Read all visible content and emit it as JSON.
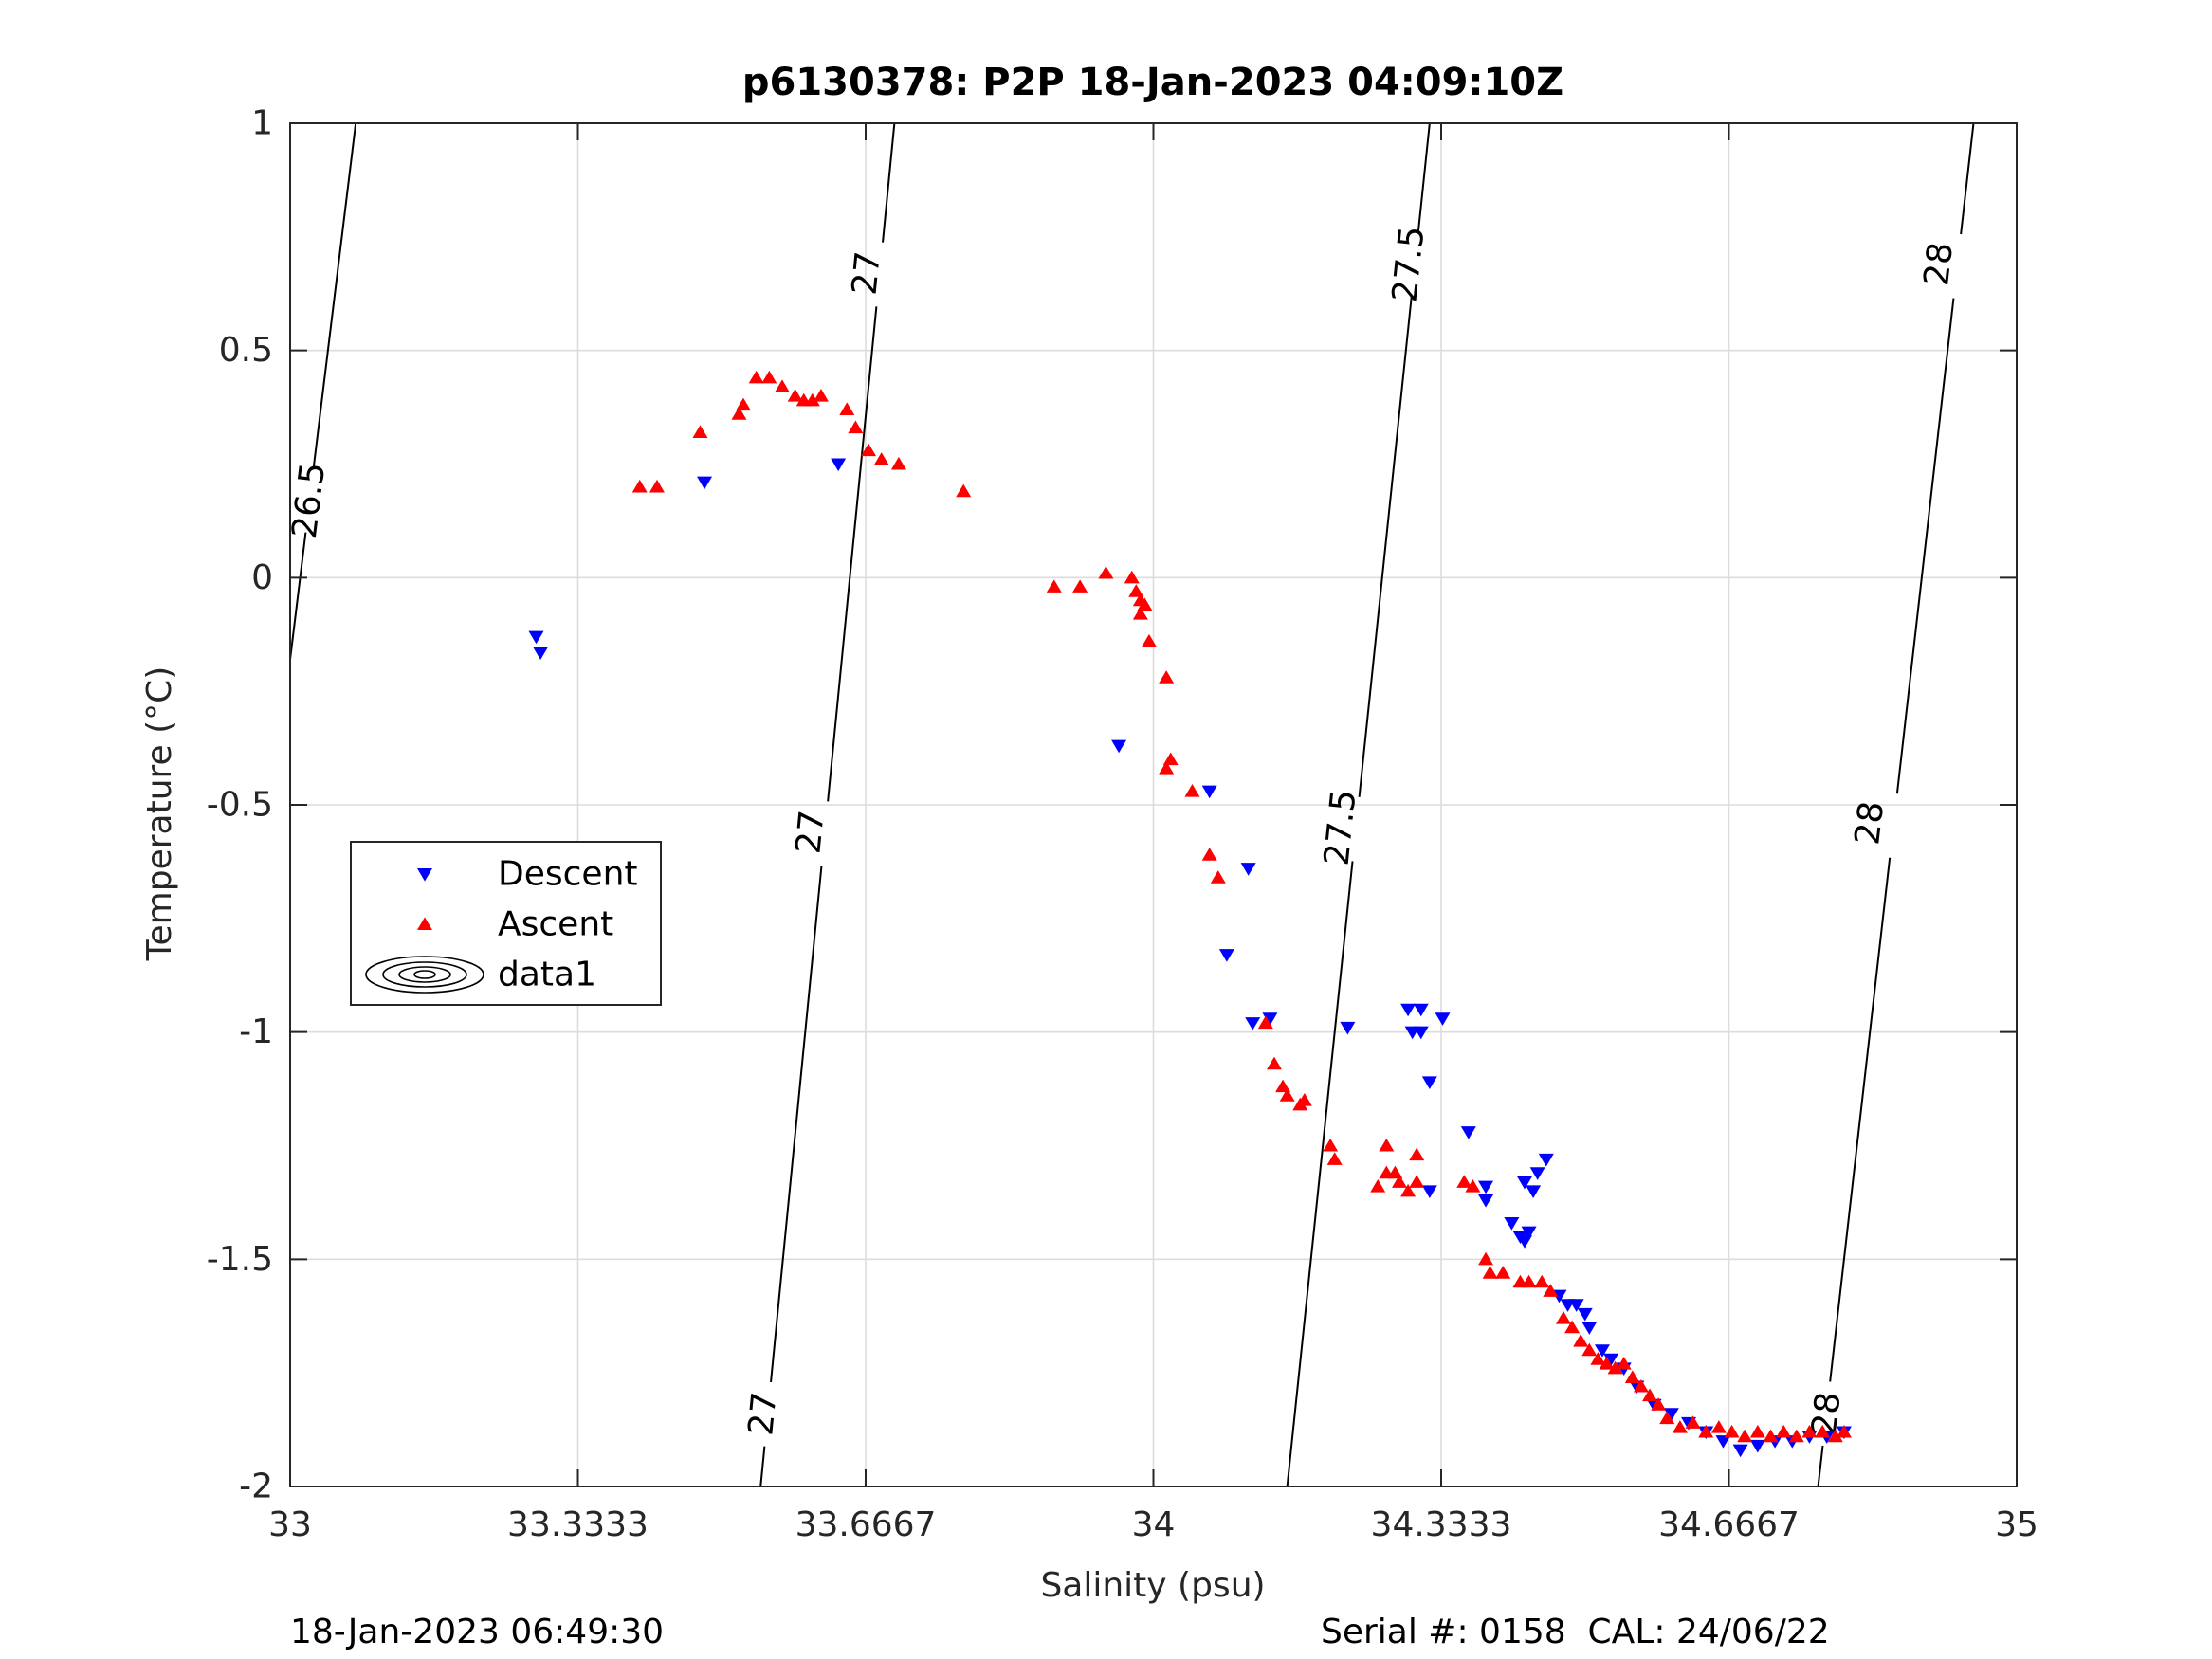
{
  "chart_data": {
    "type": "scatter",
    "title": "p6130378: P2P 18-Jan-2023 04:09:10Z",
    "xlabel": "Salinity (psu)",
    "ylabel": "Temperature (°C)",
    "xlim": [
      33,
      35
    ],
    "ylim": [
      -2,
      1
    ],
    "x_ticks": [
      "33",
      "33.3333",
      "33.6667",
      "34",
      "34.3333",
      "34.6667",
      "35"
    ],
    "x_tick_values": [
      33,
      33.33333,
      33.66667,
      34,
      34.33333,
      34.66667,
      35
    ],
    "y_ticks": [
      "1",
      "0.5",
      "0",
      "-0.5",
      "-1",
      "-1.5",
      "-2"
    ],
    "y_tick_values": [
      1,
      0.5,
      0,
      -0.5,
      -1,
      -1.5,
      -2
    ],
    "grid": true,
    "legend_placement": "left-middle",
    "contours": [
      {
        "label": "26.5",
        "points": [
          [
            33.0,
            -0.18
          ],
          [
            33.076,
            1.0
          ]
        ],
        "label_positions": [
          [
            33.022,
            0.17
          ]
        ]
      },
      {
        "label": "27",
        "points": [
          [
            33.545,
            -2.0
          ],
          [
            33.7,
            1.0
          ]
        ],
        "label_positions": [
          [
            33.548,
            -1.84
          ],
          [
            33.603,
            -0.56
          ],
          [
            33.668,
            0.67
          ]
        ]
      },
      {
        "label": "27.5",
        "points": [
          [
            34.155,
            -2.0
          ],
          [
            34.32,
            1.0
          ]
        ],
        "label_positions": [
          [
            34.217,
            -0.55
          ],
          [
            34.296,
            0.69
          ]
        ]
      },
      {
        "label": "28",
        "points": [
          [
            34.77,
            -2.0
          ],
          [
            34.95,
            1.0
          ]
        ],
        "label_positions": [
          [
            34.78,
            -1.84
          ],
          [
            34.83,
            -0.54
          ],
          [
            34.91,
            0.69
          ]
        ]
      }
    ],
    "series": [
      {
        "name": "Descent",
        "color": "#0000ff",
        "marker": "triangle-down",
        "points": [
          [
            33.285,
            -0.13
          ],
          [
            33.29,
            -0.165
          ],
          [
            33.48,
            0.21
          ],
          [
            33.635,
            0.25
          ],
          [
            33.96,
            -0.37
          ],
          [
            34.065,
            -0.47
          ],
          [
            34.085,
            -0.83
          ],
          [
            34.11,
            -0.64
          ],
          [
            34.115,
            -0.98
          ],
          [
            34.135,
            -0.97
          ],
          [
            34.225,
            -0.99
          ],
          [
            34.295,
            -0.95
          ],
          [
            34.31,
            -0.95
          ],
          [
            34.3,
            -1.0
          ],
          [
            34.31,
            -1.0
          ],
          [
            34.32,
            -1.11
          ],
          [
            34.335,
            -0.97
          ],
          [
            34.32,
            -1.35
          ],
          [
            34.365,
            -1.22
          ],
          [
            34.385,
            -1.34
          ],
          [
            34.385,
            -1.37
          ],
          [
            34.415,
            -1.42
          ],
          [
            34.425,
            -1.45
          ],
          [
            34.43,
            -1.46
          ],
          [
            34.435,
            -1.44
          ],
          [
            34.43,
            -1.33
          ],
          [
            34.44,
            -1.35
          ],
          [
            34.445,
            -1.31
          ],
          [
            34.455,
            -1.28
          ],
          [
            34.47,
            -1.58
          ],
          [
            34.48,
            -1.6
          ],
          [
            34.49,
            -1.6
          ],
          [
            34.5,
            -1.62
          ],
          [
            34.505,
            -1.65
          ],
          [
            34.52,
            -1.7
          ],
          [
            34.53,
            -1.72
          ],
          [
            34.545,
            -1.74
          ],
          [
            34.56,
            -1.78
          ],
          [
            34.58,
            -1.82
          ],
          [
            34.6,
            -1.84
          ],
          [
            34.62,
            -1.86
          ],
          [
            34.64,
            -1.88
          ],
          [
            34.66,
            -1.9
          ],
          [
            34.68,
            -1.92
          ],
          [
            34.7,
            -1.91
          ],
          [
            34.72,
            -1.9
          ],
          [
            34.74,
            -1.9
          ],
          [
            34.76,
            -1.89
          ],
          [
            34.78,
            -1.89
          ],
          [
            34.8,
            -1.88
          ]
        ]
      },
      {
        "name": "Ascent",
        "color": "#ff0000",
        "marker": "triangle-up",
        "points": [
          [
            33.405,
            0.2
          ],
          [
            33.425,
            0.2
          ],
          [
            33.475,
            0.32
          ],
          [
            33.52,
            0.36
          ],
          [
            33.525,
            0.38
          ],
          [
            33.54,
            0.44
          ],
          [
            33.555,
            0.44
          ],
          [
            33.57,
            0.42
          ],
          [
            33.585,
            0.4
          ],
          [
            33.595,
            0.39
          ],
          [
            33.605,
            0.39
          ],
          [
            33.615,
            0.4
          ],
          [
            33.645,
            0.37
          ],
          [
            33.655,
            0.33
          ],
          [
            33.67,
            0.28
          ],
          [
            33.685,
            0.26
          ],
          [
            33.705,
            0.25
          ],
          [
            33.78,
            0.19
          ],
          [
            33.885,
            -0.02
          ],
          [
            33.915,
            -0.02
          ],
          [
            33.945,
            0.01
          ],
          [
            33.975,
            0.0
          ],
          [
            33.98,
            -0.03
          ],
          [
            33.985,
            -0.05
          ],
          [
            33.985,
            -0.08
          ],
          [
            33.99,
            -0.06
          ],
          [
            33.995,
            -0.14
          ],
          [
            34.015,
            -0.22
          ],
          [
            34.015,
            -0.42
          ],
          [
            34.02,
            -0.4
          ],
          [
            34.045,
            -0.47
          ],
          [
            34.065,
            -0.61
          ],
          [
            34.075,
            -0.66
          ],
          [
            34.13,
            -0.98
          ],
          [
            34.14,
            -1.07
          ],
          [
            34.15,
            -1.12
          ],
          [
            34.155,
            -1.14
          ],
          [
            34.17,
            -1.16
          ],
          [
            34.175,
            -1.15
          ],
          [
            34.205,
            -1.25
          ],
          [
            34.21,
            -1.28
          ],
          [
            34.26,
            -1.34
          ],
          [
            34.27,
            -1.25
          ],
          [
            34.27,
            -1.31
          ],
          [
            34.28,
            -1.31
          ],
          [
            34.285,
            -1.33
          ],
          [
            34.295,
            -1.35
          ],
          [
            34.305,
            -1.33
          ],
          [
            34.305,
            -1.27
          ],
          [
            34.36,
            -1.33
          ],
          [
            34.37,
            -1.34
          ],
          [
            34.385,
            -1.5
          ],
          [
            34.39,
            -1.53
          ],
          [
            34.405,
            -1.53
          ],
          [
            34.425,
            -1.55
          ],
          [
            34.435,
            -1.55
          ],
          [
            34.45,
            -1.55
          ],
          [
            34.46,
            -1.57
          ],
          [
            34.475,
            -1.63
          ],
          [
            34.485,
            -1.65
          ],
          [
            34.495,
            -1.68
          ],
          [
            34.505,
            -1.7
          ],
          [
            34.515,
            -1.72
          ],
          [
            34.525,
            -1.73
          ],
          [
            34.535,
            -1.74
          ],
          [
            34.545,
            -1.73
          ],
          [
            34.555,
            -1.76
          ],
          [
            34.565,
            -1.78
          ],
          [
            34.575,
            -1.8
          ],
          [
            34.585,
            -1.82
          ],
          [
            34.595,
            -1.85
          ],
          [
            34.61,
            -1.87
          ],
          [
            34.625,
            -1.86
          ],
          [
            34.64,
            -1.88
          ],
          [
            34.655,
            -1.87
          ],
          [
            34.67,
            -1.88
          ],
          [
            34.685,
            -1.89
          ],
          [
            34.7,
            -1.88
          ],
          [
            34.715,
            -1.89
          ],
          [
            34.73,
            -1.88
          ],
          [
            34.745,
            -1.89
          ],
          [
            34.76,
            -1.88
          ],
          [
            34.775,
            -1.88
          ],
          [
            34.79,
            -1.89
          ],
          [
            34.8,
            -1.88
          ]
        ]
      }
    ],
    "legend": [
      {
        "label": "Descent",
        "icon": "blue-triangle-down-icon"
      },
      {
        "label": "Ascent",
        "icon": "red-triangle-up-icon"
      },
      {
        "label": "data1",
        "icon": "contour-ellipses-icon"
      }
    ]
  },
  "footer": {
    "left": "18-Jan-2023 06:49:30",
    "right": "Serial #: 0158  CAL: 24/06/22"
  }
}
